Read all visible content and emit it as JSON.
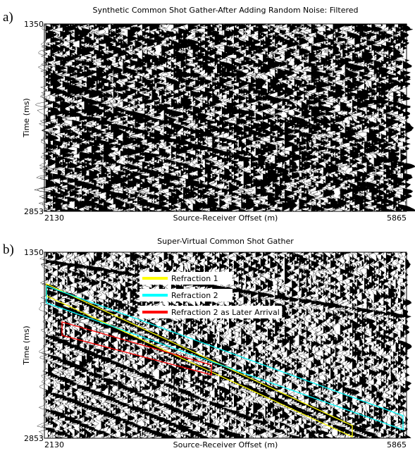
{
  "chart_data": [
    {
      "type": "seismic",
      "panel_label": "a)",
      "title": "Synthetic Common Shot Gather-After Adding Random Noise: Filtered",
      "xlabel": "Source-Receiver Offset (m)",
      "ylabel": "Time (ms)",
      "xlim": [
        2130,
        5865
      ],
      "xticks": [
        2130,
        5865
      ],
      "ylim": [
        2853,
        1350
      ],
      "yticks": [
        1350,
        2853
      ]
    },
    {
      "type": "seismic",
      "panel_label": "b)",
      "title": "Super-Virtual Common Shot Gather",
      "xlabel": "Source-Receiver Offset (m)",
      "ylabel": "Time (ms)",
      "xlim": [
        2130,
        5865
      ],
      "xticks": [
        2130,
        5865
      ],
      "ylim": [
        2853,
        1350
      ],
      "yticks": [
        1350,
        2853
      ],
      "legend": [
        {
          "name": "Refraction 1",
          "color": "#ffff00"
        },
        {
          "name": "Refraction 2",
          "color": "#00ffff"
        },
        {
          "name": "Refraction 2 as Later Arrival",
          "color": "#ff0000"
        }
      ]
    }
  ]
}
